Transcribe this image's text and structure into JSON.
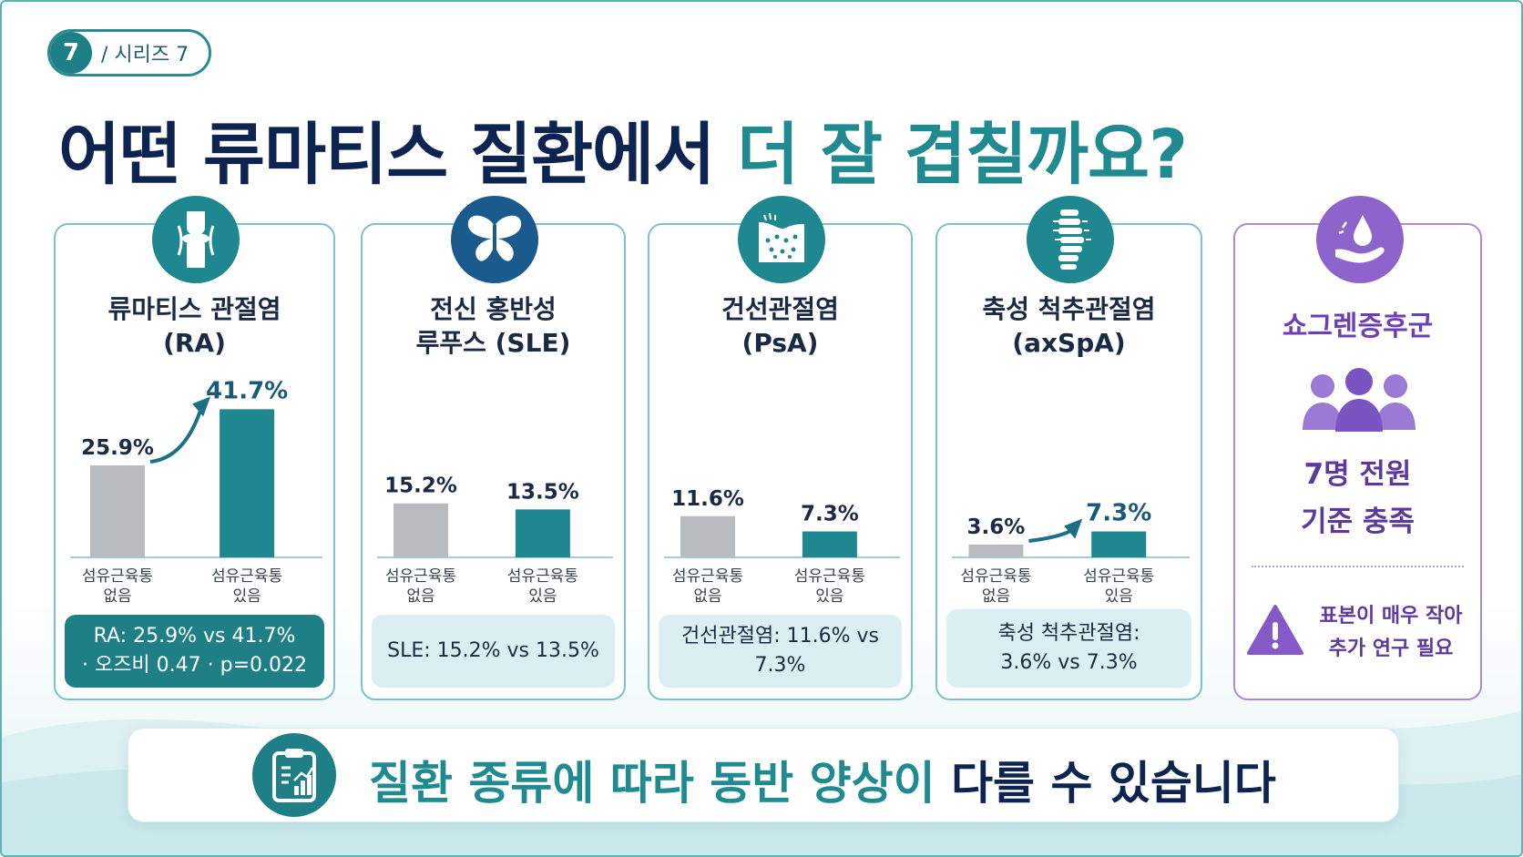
{
  "series": {
    "number": "7",
    "label": "/ 시리즈 7"
  },
  "title": {
    "main": "어떤 류마티스 질환에서",
    "highlight": "더 잘 겹칠까요?"
  },
  "colors": {
    "no_fm": "#b9bcbf",
    "fm": "#1f8790",
    "navy": "#0d2450",
    "teal": "#1f8a8f",
    "purple": "#6d3fb5"
  },
  "chart_data": [
    {
      "type": "bar",
      "title_line1": "류마티스 관절염",
      "title_line2": "(RA)",
      "categories": [
        "섬유근육통\n없음",
        "섬유근육통\n있음"
      ],
      "values": [
        25.9,
        41.7
      ],
      "labels": [
        "25.9%",
        "41.7%"
      ],
      "trend_arrow": true,
      "summary_line1": "RA: 25.9% vs 41.7%",
      "summary_line2": "· 오즈비 0.47 · p=0.022",
      "summary_style": "dark",
      "icon": "knee-joint-icon"
    },
    {
      "type": "bar",
      "title_line1": "전신 홍반성",
      "title_line2": "루푸스 (SLE)",
      "categories": [
        "섬유근육통\n없음",
        "섬유근육통\n있음"
      ],
      "values": [
        15.2,
        13.5
      ],
      "labels": [
        "15.2%",
        "13.5%"
      ],
      "trend_arrow": false,
      "summary_line1": "SLE: 15.2% vs 13.5%",
      "summary_line2": "",
      "summary_style": "light",
      "icon": "butterfly-icon"
    },
    {
      "type": "bar",
      "title_line1": "건선관절염",
      "title_line2": "(PsA)",
      "categories": [
        "섬유근육통\n없음",
        "섬유근육통\n있음"
      ],
      "values": [
        11.6,
        7.3
      ],
      "labels": [
        "11.6%",
        "7.3%"
      ],
      "trend_arrow": false,
      "summary_line1": "건선관절염: 11.6% vs 7.3%",
      "summary_line2": "",
      "summary_style": "light",
      "icon": "skin-psoriasis-icon"
    },
    {
      "type": "bar",
      "title_line1": "축성 척추관절염",
      "title_line2": "(axSpA)",
      "categories": [
        "섬유근육통\n없음",
        "섬유근육통\n있음"
      ],
      "values": [
        3.6,
        7.3
      ],
      "labels": [
        "3.6%",
        "7.3%"
      ],
      "trend_arrow": true,
      "summary_line1": "축성 척추관절염:",
      "summary_line2": "3.6% vs 7.3%",
      "summary_style": "light",
      "icon": "spine-icon"
    }
  ],
  "sjogren": {
    "title": "쇼그렌증후군",
    "line1": "7명 전원",
    "line2": "기준 충족",
    "note_line1": "표본이 매우 작아",
    "note_line2": "추가 연구 필요"
  },
  "bottom": {
    "highlight": "질환 종류에 따라 동반 양상이",
    "rest": "다를 수 있습니다"
  }
}
